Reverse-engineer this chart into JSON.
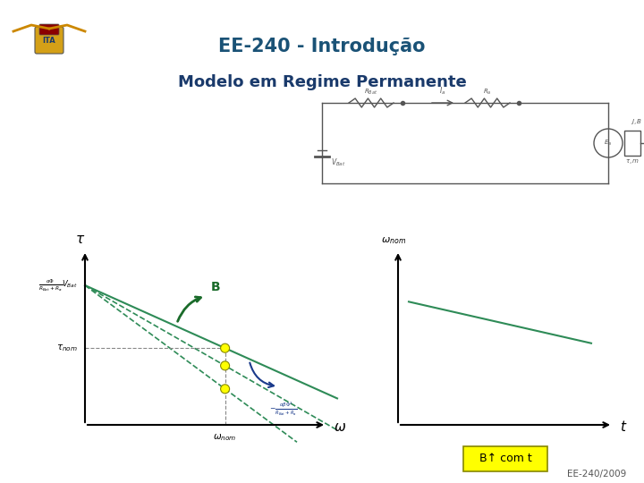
{
  "title": "EE-240 - Introdução",
  "subtitle": "Modelo em Regime Permanente",
  "bg_color": "#ffffff",
  "title_color": "#1a5276",
  "subtitle_color": "#1a3a6b",
  "header_bar_top_color": "#2e75b6",
  "header_bar_bottom_color": "#7ab0d4",
  "footer_bar_top_color": "#7ab0d4",
  "footer_bar_bottom_color": "#2e75b6",
  "footer_text": "EE-240/2009",
  "left_plot": {
    "line_color_solid": "#2e8b57",
    "line_color_dashed1": "#2e8b57",
    "line_color_dashed2": "#2e8b57",
    "dot_color": "#ffff00",
    "dot_edge_color": "#888800",
    "arrow_B_color": "#1a6b2a",
    "arrow_slope_color": "#1a3a8b",
    "ref_line_color": "#888888"
  },
  "right_plot": {
    "line_color": "#2e8b57",
    "box_text": "B↑ com t",
    "box_bg": "#ffff00",
    "box_edge": "#888800"
  },
  "circuit": {
    "color": "#555555",
    "lw": 1.0
  }
}
